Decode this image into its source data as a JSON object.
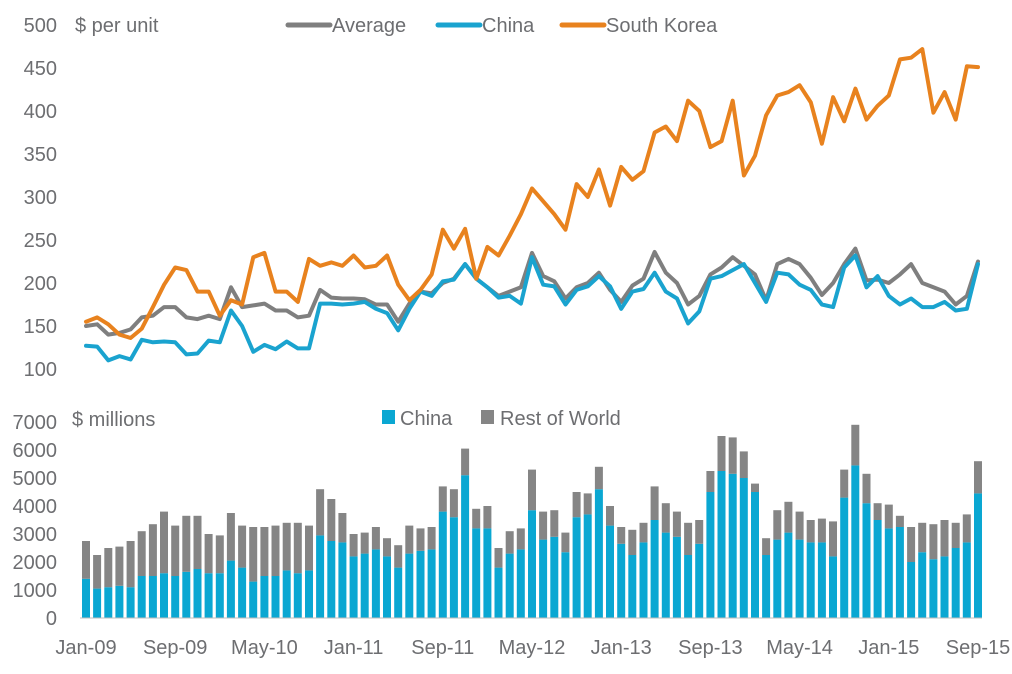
{
  "chart_data": [
    {
      "type": "line",
      "unit_label": "$ per unit",
      "ylim": [
        100,
        500
      ],
      "y_ticks": [
        100,
        150,
        200,
        250,
        300,
        350,
        400,
        450,
        500
      ],
      "x_start": "Jan-09",
      "n_points": 81,
      "legend_position": "top",
      "series": [
        {
          "name": "Average",
          "color": "#7f7f7f",
          "values": [
            150,
            152,
            140,
            142,
            146,
            160,
            162,
            172,
            172,
            160,
            158,
            162,
            158,
            195,
            172,
            174,
            176,
            168,
            168,
            160,
            162,
            192,
            183,
            182,
            182,
            181,
            175,
            175,
            155,
            176,
            190,
            188,
            200,
            205,
            222,
            205,
            195,
            185,
            190,
            195,
            235,
            208,
            202,
            182,
            195,
            200,
            212,
            192,
            178,
            197,
            205,
            236,
            212,
            200,
            175,
            185,
            210,
            218,
            230,
            220,
            210,
            180,
            222,
            228,
            222,
            206,
            186,
            200,
            222,
            240,
            203,
            204,
            200,
            210,
            222,
            200,
            195,
            190,
            175,
            185,
            225
          ]
        },
        {
          "name": "China",
          "color": "#1aa3cf",
          "values": [
            127,
            126,
            110,
            115,
            111,
            134,
            131,
            132,
            131,
            117,
            118,
            133,
            131,
            168,
            150,
            120,
            128,
            123,
            132,
            124,
            124,
            176,
            176,
            175,
            176,
            178,
            170,
            165,
            145,
            170,
            190,
            185,
            202,
            204,
            222,
            205,
            195,
            183,
            185,
            176,
            230,
            198,
            196,
            175,
            192,
            196,
            208,
            196,
            170,
            190,
            193,
            212,
            190,
            182,
            153,
            167,
            205,
            208,
            215,
            222,
            200,
            178,
            212,
            210,
            198,
            192,
            175,
            172,
            218,
            232,
            195,
            208,
            185,
            175,
            182,
            172,
            172,
            178,
            168,
            170,
            222
          ]
        },
        {
          "name": "South Korea",
          "color": "#e8821e",
          "values": [
            155,
            160,
            152,
            140,
            136,
            147,
            172,
            198,
            218,
            215,
            190,
            190,
            162,
            180,
            175,
            230,
            235,
            190,
            190,
            178,
            228,
            220,
            224,
            220,
            232,
            218,
            220,
            232,
            198,
            180,
            192,
            210,
            262,
            240,
            263,
            205,
            242,
            232,
            255,
            280,
            310,
            295,
            280,
            262,
            315,
            300,
            332,
            290,
            335,
            320,
            330,
            375,
            382,
            365,
            412,
            400,
            358,
            365,
            412,
            325,
            348,
            395,
            418,
            422,
            430,
            410,
            362,
            416,
            388,
            426,
            390,
            406,
            418,
            460,
            462,
            472,
            398,
            422,
            390,
            452,
            451
          ]
        }
      ]
    },
    {
      "type": "bar",
      "stacked": true,
      "unit_label": "$ millions",
      "ylim": [
        0,
        7000
      ],
      "y_ticks": [
        0,
        1000,
        2000,
        3000,
        4000,
        5000,
        6000,
        7000
      ],
      "x_tick_labels": [
        "Jan-09",
        "Sep-09",
        "May-10",
        "Jan-11",
        "Sep-11",
        "May-12",
        "Jan-13",
        "Sep-13",
        "May-14",
        "Jan-15",
        "Sep-15"
      ],
      "x_tick_every": 8,
      "legend_position": "top",
      "series": [
        {
          "name": "China",
          "color": "#0aa7d2",
          "values": [
            1400,
            1050,
            1100,
            1150,
            1100,
            1500,
            1500,
            1600,
            1500,
            1650,
            1750,
            1600,
            1600,
            2050,
            1800,
            1300,
            1500,
            1500,
            1700,
            1600,
            1700,
            2950,
            2750,
            2700,
            2200,
            2300,
            2450,
            2200,
            1800,
            2300,
            2400,
            2450,
            3800,
            3600,
            5100,
            3200,
            3200,
            1800,
            2300,
            2450,
            3850,
            2800,
            2900,
            2350,
            3600,
            3700,
            4600,
            3300,
            2650,
            2250,
            2700,
            3500,
            3050,
            2900,
            2250,
            2650,
            4500,
            5250,
            5150,
            5000,
            4500,
            2250,
            2800,
            3050,
            2800,
            2700,
            2700,
            2200,
            4300,
            5450,
            4100,
            3500,
            3200,
            3250,
            2000,
            2350,
            2100,
            2200,
            2500,
            2700,
            4450
          ]
        },
        {
          "name": "Rest of World",
          "color": "#858585",
          "values": [
            1350,
            1200,
            1400,
            1400,
            1650,
            1600,
            1850,
            2200,
            1800,
            2000,
            1900,
            1400,
            1350,
            1700,
            1500,
            1950,
            1750,
            1800,
            1700,
            1800,
            1600,
            1650,
            1500,
            1050,
            800,
            750,
            800,
            650,
            800,
            1000,
            800,
            800,
            900,
            1000,
            950,
            700,
            800,
            700,
            800,
            750,
            1450,
            1000,
            950,
            700,
            900,
            750,
            800,
            700,
            600,
            900,
            700,
            1200,
            1050,
            900,
            1150,
            850,
            750,
            1250,
            1300,
            950,
            300,
            600,
            1050,
            1100,
            1000,
            800,
            850,
            1250,
            1000,
            1450,
            1050,
            600,
            850,
            400,
            1250,
            1050,
            1250,
            1300,
            900,
            1000,
            1150
          ]
        }
      ]
    }
  ]
}
